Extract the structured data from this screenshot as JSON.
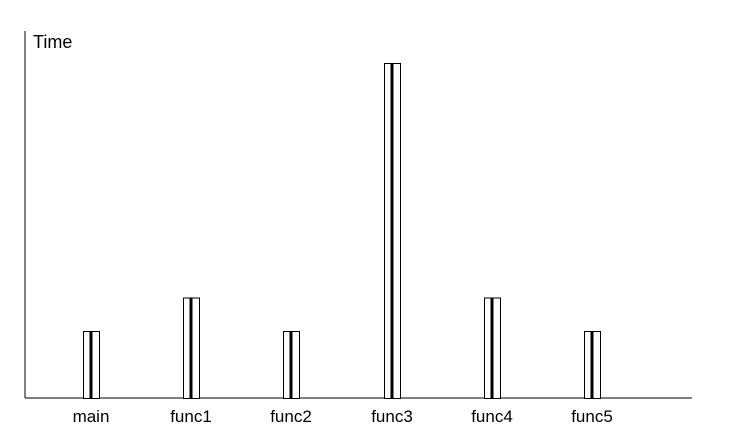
{
  "chart_data": {
    "type": "bar",
    "title": "",
    "xlabel": "",
    "ylabel": "Time",
    "categories": [
      "main",
      "func1",
      "func2",
      "func3",
      "func4",
      "func5"
    ],
    "values": [
      2,
      3,
      2,
      10,
      3,
      2
    ],
    "ylim": [
      0,
      11
    ],
    "grid": false,
    "legend": "none",
    "colors": {
      "bar_fill": "#ffffff",
      "bar_stroke": "#000000",
      "axis": "#000000"
    }
  }
}
